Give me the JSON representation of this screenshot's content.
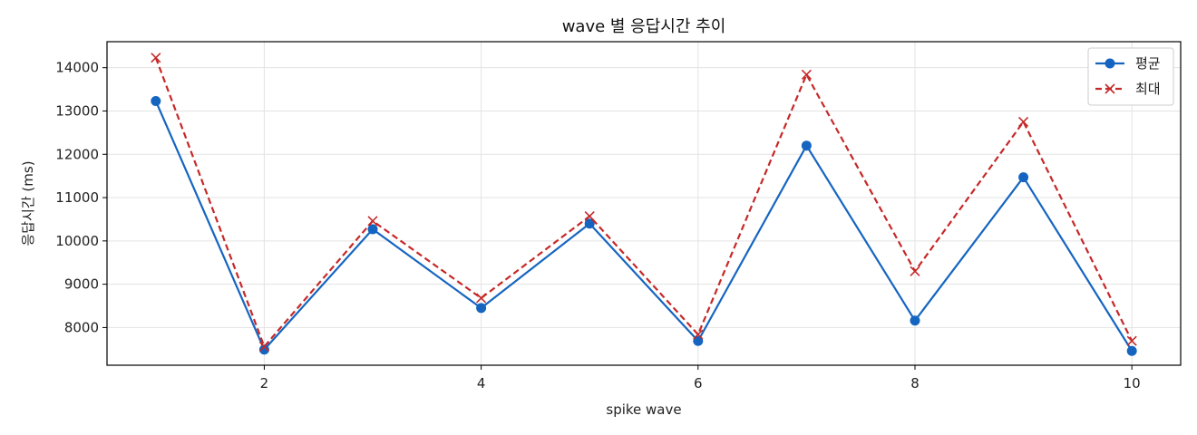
{
  "chart_data": {
    "type": "line",
    "title": "wave 별 응답시간 추이",
    "xlabel": "spike wave",
    "ylabel": "응답시간 (ms)",
    "x": [
      1,
      2,
      3,
      4,
      5,
      6,
      7,
      8,
      9,
      10
    ],
    "xlim": [
      0.55,
      10.45
    ],
    "ylim": [
      7130,
      14600
    ],
    "xticks": [
      2,
      4,
      6,
      8,
      10
    ],
    "yticks": [
      8000,
      9000,
      10000,
      11000,
      12000,
      13000,
      14000
    ],
    "grid": true,
    "legend_position": "top-right",
    "series": [
      {
        "name": "평균",
        "color": "#1565c0",
        "marker": "circle",
        "line_style": "solid",
        "values": [
          13230,
          7490,
          10270,
          8450,
          10400,
          7690,
          12200,
          8160,
          11470,
          7460
        ]
      },
      {
        "name": "최대",
        "color": "#c62828",
        "marker": "x",
        "line_style": "dashed",
        "values": [
          14230,
          7560,
          10460,
          8680,
          10570,
          7840,
          13840,
          9300,
          12750,
          7690
        ]
      }
    ]
  }
}
